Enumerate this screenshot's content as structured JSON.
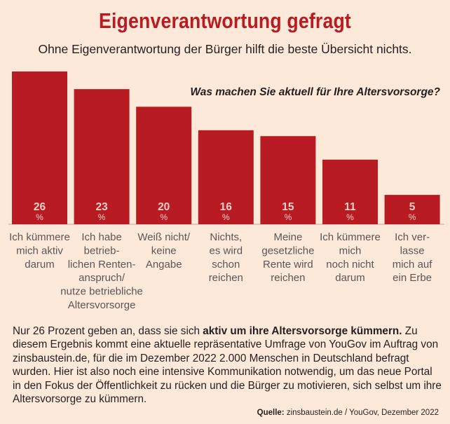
{
  "title": "Eigenverantwortung gefragt",
  "subtitle": "Ohne Eigenverantwortung der Bürger hilft die beste Übersicht nichts.",
  "question": "Was machen Sie aktuell für Ihre Altersvorsorge?",
  "colors": {
    "bar": "#b81c22",
    "background": "#fde9d9",
    "title": "#b81c22",
    "bar_text": "#f6cfc9"
  },
  "chart_data": {
    "type": "bar",
    "title": "Was machen Sie aktuell für Ihre Altersvorsorge?",
    "unit": "%",
    "categories": [
      [
        "Ich kümmere",
        "mich aktiv",
        "darum"
      ],
      [
        "Ich habe",
        "betrieb-",
        "lichen Renten-",
        "anspruch/",
        "nutze betriebliche",
        "Altersvorsorge"
      ],
      [
        "Weiß nicht/",
        "keine",
        "Angabe"
      ],
      [
        "Nichts,",
        "es wird",
        "schon",
        "reichen"
      ],
      [
        "Meine",
        "gesetzliche",
        "Rente wird",
        "reichen"
      ],
      [
        "Ich kümmere",
        "mich",
        "noch nicht",
        "darum"
      ],
      [
        "Ich ver-",
        "lasse",
        "mich auf",
        "ein Erbe"
      ]
    ],
    "values": [
      26,
      23,
      20,
      16,
      15,
      11,
      5
    ],
    "ylim": [
      0,
      26
    ],
    "grid": false,
    "legend": "none"
  },
  "body": {
    "intro": "Nur 26 Prozent geben an, dass sie sich ",
    "highlight": "aktiv um ihre Altersvorsorge kümmern.",
    "rest": " Zu diesem Ergebnis kommt eine aktuelle repräsentative Umfrage von YouGov im Auftrag von zinsbaustein.de, für die im Dezember 2022 2.000 Menschen in Deutschland befragt wurden. Hier ist also noch eine intensive Kommunikation notwendig, um das neue Portal in den Fokus der Öffentlichkeit zu rücken und die Bürger zu motivieren, sich selbst um ihre Altersvorsorge zu kümmern."
  },
  "source": {
    "label": "Quelle:",
    "text": " zinsbaustein.de / YouGov, Dezember 2022"
  }
}
